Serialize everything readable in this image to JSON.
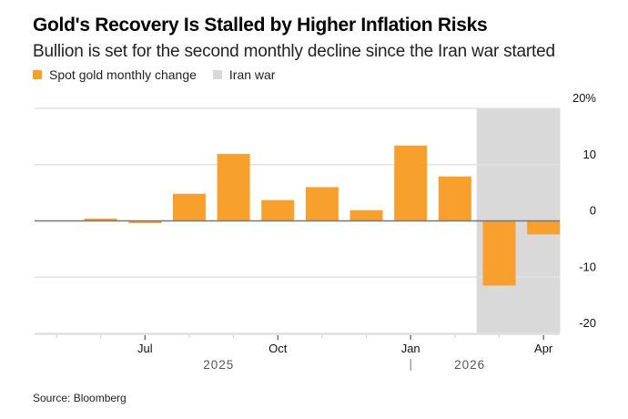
{
  "header": {
    "title": "Gold's Recovery Is Stalled by Higher Inflation Risks",
    "subtitle": "Bullion is set for the second monthly decline since the Iran war started"
  },
  "legend": [
    {
      "label": "Spot gold monthly change",
      "color": "#f8a02e"
    },
    {
      "label": "Iran war",
      "color": "#d9d9d9"
    }
  ],
  "source": "Source: Bloomberg",
  "chart_data": {
    "type": "bar",
    "title": "Gold's Recovery Is Stalled by Higher Inflation Risks",
    "subtitle": "Bullion is set for the second monthly decline since the Iran war started",
    "xlabel": "",
    "ylabel": "",
    "categories": [
      "Jun 2025",
      "Jul 2025",
      "Aug 2025",
      "Sep 2025",
      "Oct 2025",
      "Nov 2025",
      "Dec 2025",
      "Jan 2026",
      "Feb 2026",
      "Mar 2026",
      "Apr 2026"
    ],
    "series": [
      {
        "name": "Spot gold monthly change",
        "color": "#f8a02e",
        "values": [
          0.4,
          -0.4,
          4.8,
          11.9,
          3.7,
          6.0,
          1.9,
          13.4,
          7.9,
          -11.5,
          -2.4
        ]
      }
    ],
    "shaded_region": {
      "label": "Iran war",
      "from": "Mar 2026",
      "to": "Apr 2026",
      "color": "#d9d9d9"
    },
    "ylim": [
      -20,
      20
    ],
    "yticks": [
      20,
      10,
      0,
      -10,
      -20
    ],
    "ytick_labels": [
      "20%",
      "10",
      "0",
      "-10",
      "-20"
    ],
    "xtick_labels": [
      {
        "label": "Jul",
        "month": "Jul 2025"
      },
      {
        "label": "Oct",
        "month": "Oct 2025"
      },
      {
        "label": "Jan",
        "month": "Jan 2026"
      },
      {
        "label": "Apr",
        "month": "Apr 2026"
      }
    ],
    "x_months": [
      "May 2025",
      "Jun 2025",
      "Jul 2025",
      "Aug 2025",
      "Sep 2025",
      "Oct 2025",
      "Nov 2025",
      "Dec 2025",
      "Jan 2026",
      "Feb 2026",
      "Mar 2026",
      "Apr 2026"
    ],
    "year_labels": [
      {
        "label": "2025"
      },
      {
        "label": "2026"
      }
    ],
    "grid": true,
    "legend_position": "top-left",
    "yaxis_position": "right"
  }
}
